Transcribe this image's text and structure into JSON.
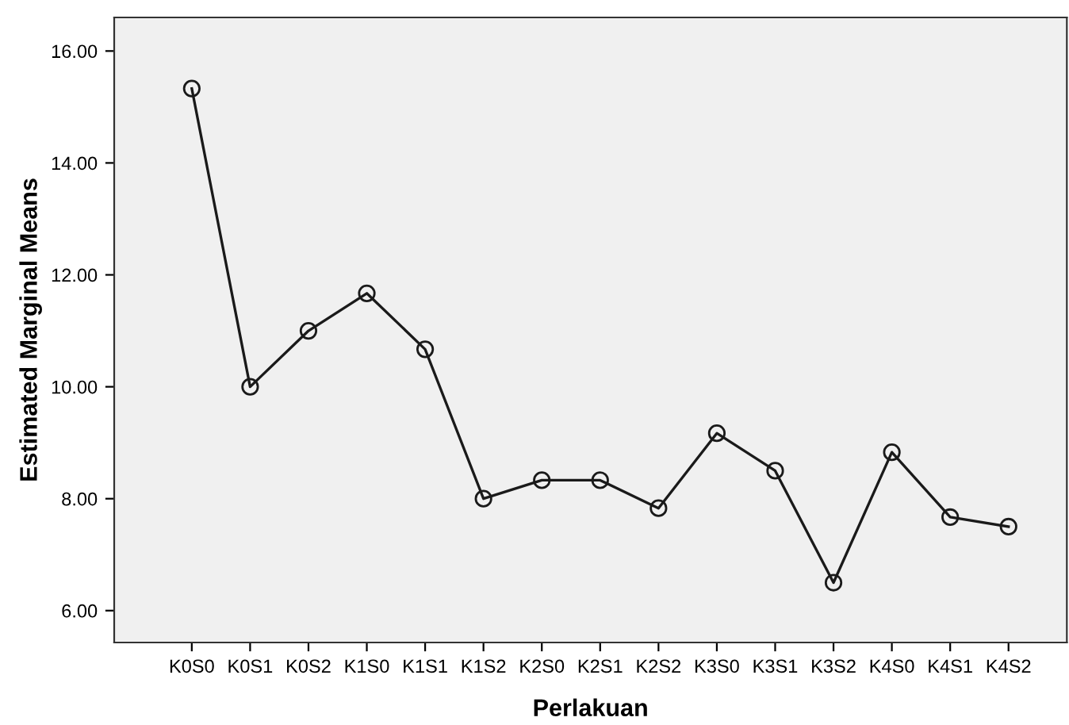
{
  "chart_data": {
    "type": "line",
    "xlabel": "Perlakuan",
    "ylabel": "Estimated Marginal Means",
    "categories": [
      "K0S0",
      "K0S1",
      "K0S2",
      "K1S0",
      "K1S1",
      "K1S2",
      "K2S0",
      "K2S1",
      "K2S2",
      "K3S0",
      "K3S1",
      "K3S2",
      "K4S0",
      "K4S1",
      "K4S2"
    ],
    "series": [
      {
        "color": "#1a1a1a",
        "values": [
          15.33,
          10.0,
          11.0,
          11.67,
          10.67,
          8.0,
          8.33,
          8.33,
          7.83,
          9.17,
          8.5,
          6.5,
          8.83,
          7.67,
          7.5
        ]
      }
    ],
    "ylim": [
      5.43,
      16.6
    ],
    "yticks": [
      {
        "value": 6,
        "label": "6.00"
      },
      {
        "value": 8,
        "label": "8.00"
      },
      {
        "value": 10,
        "label": "10.00"
      },
      {
        "value": 12,
        "label": "12.00"
      },
      {
        "value": 14,
        "label": "14.00"
      },
      {
        "value": 16,
        "label": "16.00"
      }
    ],
    "grid": false,
    "legend": false,
    "marker": "circle",
    "line_style": "solid"
  }
}
